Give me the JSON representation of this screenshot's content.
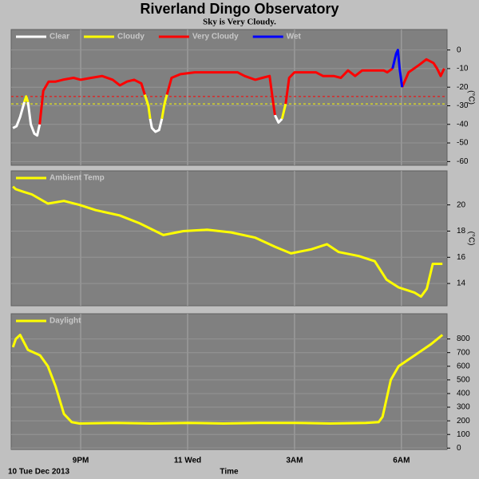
{
  "chart_data": [
    {
      "type": "line",
      "title": "Riverland Dingo Observatory",
      "subtitle": "Sky is Very Cloudy.",
      "y_label": "(°C)",
      "xlim": [
        19.05,
        31.28
      ],
      "xticks": [
        21,
        24,
        27,
        30
      ],
      "ylim": [
        -62,
        11
      ],
      "yticks": [
        0,
        -10,
        -20,
        -30,
        -40,
        -50,
        -60
      ],
      "grid": true,
      "thresholds": [
        {
          "value": -25,
          "color": "#ff0000"
        },
        {
          "value": -29,
          "color": "#ffff00"
        }
      ],
      "series": [
        {
          "name": "Clear",
          "color": "#ffffff",
          "x": [
            19.1,
            19.2,
            19.3,
            19.42,
            19.47,
            19.52,
            19.6,
            19.7,
            19.78,
            19.85,
            21,
            22.95,
            23.0,
            23.1,
            23.2,
            23.28,
            25,
            26.45,
            26.55,
            26.65
          ],
          "values": [
            -42,
            -41,
            -36,
            -28,
            null,
            -28,
            -40,
            -45,
            -46,
            -40,
            null,
            -37,
            -42,
            -44,
            -43,
            -37,
            null,
            -35,
            -39,
            -37
          ]
        },
        {
          "name": "Cloudy",
          "color": "#ffff00",
          "x": [
            19.42,
            19.47,
            19.52,
            21,
            22.8,
            22.9,
            22.95,
            23.1,
            23.28,
            23.35,
            23.42,
            25,
            26.65,
            26.75
          ],
          "values": [
            -28,
            -25,
            -28,
            null,
            -24,
            -30,
            -37,
            null,
            -37,
            -29,
            -24,
            null,
            -37,
            -29
          ]
        },
        {
          "name": "Very Cloudy",
          "color": "#ff0000",
          "x": [
            19.85,
            19.95,
            20.1,
            20.3,
            20.5,
            20.8,
            21.0,
            21.3,
            21.6,
            21.9,
            22.1,
            22.3,
            22.5,
            22.7,
            22.8,
            23.1,
            23.42,
            23.55,
            23.8,
            24.2,
            24.6,
            25.0,
            25.4,
            25.6,
            25.9,
            26.1,
            26.3,
            26.4,
            26.45,
            26.6,
            26.75,
            26.85,
            27.0,
            27.4,
            27.6,
            27.8,
            28.1,
            28.3,
            28.5,
            28.7,
            28.9,
            29.2,
            29.5,
            29.6,
            29.75,
            29.9,
            30.02,
            30.2,
            30.5,
            30.7,
            30.9,
            31.0,
            31.1,
            31.2
          ],
          "values": [
            -40,
            -22,
            -17,
            -17,
            -16,
            -15,
            -16,
            -15,
            -14,
            -16,
            -19,
            -17,
            -16,
            -18,
            -24,
            null,
            -24,
            -15,
            -13,
            -12,
            -12,
            -12,
            -12,
            -14,
            -16,
            -15,
            -14,
            -28,
            -35,
            null,
            -29,
            -15,
            -12,
            -12,
            -12,
            -14,
            -14,
            -15,
            -11,
            -14,
            -11,
            -11,
            -11,
            -12,
            -10,
            null,
            -20,
            -12,
            -8,
            -5,
            -7,
            -10,
            -14,
            -10
          ]
        },
        {
          "name": "Wet",
          "color": "#0000ff",
          "x": [
            29.75,
            29.85,
            29.9,
            29.95,
            30.02
          ],
          "values": [
            -10,
            -2,
            0,
            -10,
            -20
          ]
        }
      ]
    },
    {
      "type": "line",
      "y_label": "(°C)",
      "xlim": [
        19.05,
        31.28
      ],
      "xticks": [
        21,
        24,
        27,
        30
      ],
      "ylim": [
        12.3,
        22.6
      ],
      "yticks": [
        14,
        16,
        18,
        20
      ],
      "grid": true,
      "series": [
        {
          "name": "Ambient Temp",
          "color": "#ffff00",
          "x": [
            19.1,
            19.18,
            19.4,
            19.63,
            20.08,
            20.53,
            20.97,
            21.42,
            22.09,
            22.65,
            23.32,
            23.88,
            24.55,
            25.22,
            25.9,
            26.46,
            26.9,
            27.46,
            27.91,
            28.24,
            28.8,
            29.25,
            29.58,
            29.92,
            30.37,
            30.55,
            30.71,
            30.88,
            31.15
          ],
          "values": [
            21.4,
            21.2,
            21.0,
            20.8,
            20.1,
            20.3,
            20.0,
            19.6,
            19.2,
            18.6,
            17.7,
            18.0,
            18.1,
            17.9,
            17.5,
            16.8,
            16.3,
            16.6,
            17.0,
            16.4,
            16.1,
            15.7,
            14.3,
            13.7,
            13.3,
            13.0,
            13.6,
            15.5,
            15.5
          ]
        }
      ]
    },
    {
      "type": "line",
      "x_label": "Time",
      "start_label": "10 Tue Dec 2013",
      "xlim": [
        19.05,
        31.28
      ],
      "xticks": [
        {
          "value": 21,
          "label": "9PM"
        },
        {
          "value": 24,
          "label": "11 Wed"
        },
        {
          "value": 27,
          "label": "3AM"
        },
        {
          "value": 30,
          "label": "6AM"
        }
      ],
      "ylim": [
        -10,
        985
      ],
      "yticks": [
        0,
        100,
        200,
        300,
        400,
        500,
        600,
        700,
        800
      ],
      "grid": true,
      "series": [
        {
          "name": "Daylight",
          "color": "#ffff00",
          "x": [
            19.1,
            19.18,
            19.3,
            19.52,
            19.86,
            20.08,
            20.3,
            20.53,
            20.75,
            20.97,
            22,
            23,
            24,
            25,
            26,
            27,
            28,
            29,
            29.36,
            29.47,
            29.7,
            29.92,
            30.37,
            30.82,
            31.15
          ],
          "values": [
            740,
            800,
            830,
            720,
            680,
            600,
            450,
            250,
            190,
            180,
            185,
            180,
            185,
            180,
            185,
            185,
            180,
            185,
            190,
            230,
            500,
            600,
            680,
            760,
            830
          ]
        }
      ]
    }
  ]
}
